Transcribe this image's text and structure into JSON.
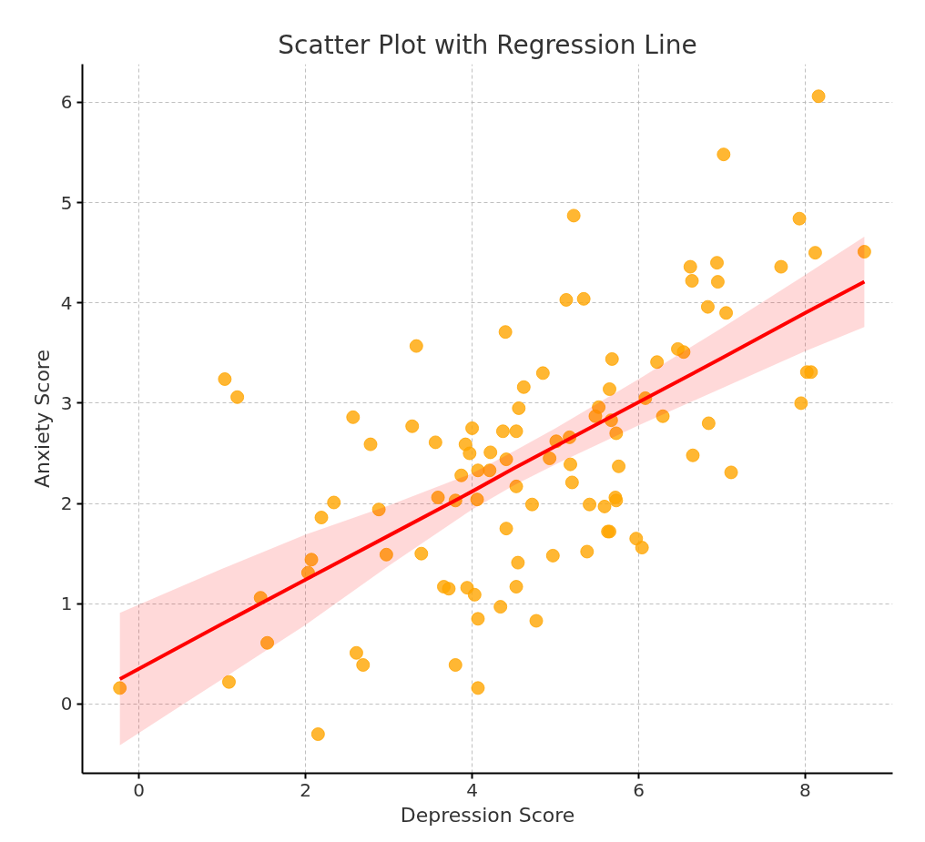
{
  "chart_data": {
    "type": "scatter",
    "title": "Scatter Plot with Regression Line",
    "xlabel": "Depression Score",
    "ylabel": "Anxiety Score",
    "xlim": [
      -0.68,
      9.05
    ],
    "ylim": [
      -0.69,
      6.38
    ],
    "xticks": [
      0,
      2,
      4,
      6,
      8
    ],
    "yticks": [
      0,
      1,
      2,
      3,
      4,
      5,
      6
    ],
    "grid": true,
    "marker": "circle",
    "series": [
      {
        "color": "#ffa500",
        "x": [
          -0.23,
          1.03,
          1.18,
          1.08,
          1.46,
          1.54,
          2.07,
          2.03,
          2.19,
          2.34,
          2.15,
          2.57,
          2.61,
          2.69,
          2.78,
          2.88,
          2.97,
          3.28,
          3.33,
          3.39,
          3.56,
          3.59,
          3.66,
          3.72,
          3.8,
          3.8,
          3.87,
          3.92,
          3.97,
          3.94,
          4.0,
          4.03,
          4.06,
          4.07,
          4.07,
          4.07,
          4.22,
          4.21,
          4.34,
          4.37,
          4.41,
          4.4,
          4.41,
          4.53,
          4.53,
          4.53,
          4.55,
          4.56,
          4.62,
          4.72,
          4.77,
          4.85,
          4.93,
          4.97,
          5.01,
          5.13,
          5.17,
          5.18,
          5.2,
          5.22,
          5.34,
          5.38,
          5.41,
          5.48,
          5.52,
          5.59,
          5.63,
          5.65,
          5.65,
          5.68,
          5.67,
          5.72,
          5.73,
          5.73,
          5.76,
          5.97,
          6.04,
          6.08,
          6.22,
          6.29,
          6.47,
          6.54,
          6.62,
          6.64,
          6.65,
          6.84,
          6.83,
          6.94,
          6.95,
          7.02,
          7.05,
          7.11,
          7.71,
          7.93,
          7.95,
          8.02,
          8.07,
          8.12,
          8.16,
          8.71
        ],
        "values": [
          0.16,
          3.24,
          3.06,
          0.22,
          1.06,
          0.61,
          1.44,
          1.31,
          1.86,
          2.01,
          -0.3,
          2.86,
          0.51,
          0.39,
          2.59,
          1.94,
          1.49,
          2.77,
          3.57,
          1.5,
          2.61,
          2.06,
          1.17,
          1.15,
          2.03,
          0.39,
          2.28,
          2.59,
          2.5,
          1.16,
          2.75,
          1.09,
          2.04,
          2.33,
          0.85,
          0.16,
          2.51,
          2.33,
          0.97,
          2.72,
          2.44,
          3.71,
          1.75,
          2.72,
          2.17,
          1.17,
          1.41,
          2.95,
          3.16,
          1.99,
          0.83,
          3.3,
          2.45,
          1.48,
          2.62,
          4.03,
          2.66,
          2.39,
          2.21,
          4.87,
          4.04,
          1.52,
          1.99,
          2.87,
          2.96,
          1.97,
          1.72,
          3.14,
          1.72,
          3.44,
          2.83,
          2.06,
          2.7,
          2.03,
          2.37,
          1.65,
          1.56,
          3.05,
          3.41,
          2.87,
          3.54,
          3.51,
          4.36,
          4.22,
          2.48,
          2.8,
          3.96,
          4.4,
          4.21,
          5.48,
          3.9,
          2.31,
          4.36,
          4.84,
          3.0,
          3.31,
          3.31,
          4.5,
          6.06,
          4.51
        ]
      },
      {
        "type": "line",
        "color": "#ff0000",
        "marker": "none",
        "line_style": "solid",
        "x": [
          -0.23,
          1,
          2,
          3,
          4,
          4.5,
          5,
          6,
          7,
          8,
          8.71
        ],
        "values": [
          0.25,
          0.8,
          1.24,
          1.68,
          2.12,
          2.35,
          2.57,
          3.01,
          3.45,
          3.9,
          4.21
        ],
        "lower": [
          -0.41,
          0.25,
          0.79,
          1.38,
          1.94,
          2.18,
          2.39,
          2.78,
          3.15,
          3.52,
          3.76
        ],
        "upper": [
          0.91,
          1.35,
          1.69,
          1.98,
          2.3,
          2.52,
          2.75,
          3.24,
          3.75,
          4.28,
          4.66
        ]
      }
    ]
  }
}
